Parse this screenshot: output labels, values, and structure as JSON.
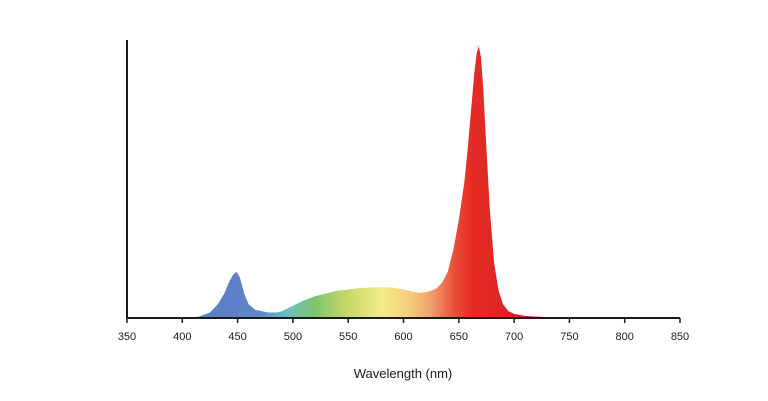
{
  "chart_data": {
    "type": "area",
    "title": "",
    "xlabel": "Wavelength (nm)",
    "ylabel": "",
    "xlim": [
      350,
      850
    ],
    "ylim": [
      0,
      1
    ],
    "x_ticks": [
      350,
      400,
      450,
      500,
      550,
      600,
      650,
      700,
      750,
      800,
      850
    ],
    "grid": false,
    "legend": "none",
    "fill": "visible-spectrum gradient",
    "series": [
      {
        "x": [
          400,
          415,
          425,
          432,
          438,
          442,
          446,
          449,
          452,
          456,
          460,
          466,
          472,
          478,
          485,
          490,
          495,
          500,
          510,
          520,
          530,
          540,
          550,
          560,
          570,
          580,
          590,
          600,
          605,
          610,
          615,
          620,
          625,
          630,
          635,
          640,
          645,
          650,
          655,
          658,
          661,
          664,
          666,
          668,
          670,
          672,
          675,
          678,
          682,
          686,
          690,
          695,
          700,
          710,
          720,
          730,
          740,
          750
        ],
        "values": [
          0,
          0.005,
          0.02,
          0.05,
          0.09,
          0.13,
          0.16,
          0.17,
          0.15,
          0.09,
          0.05,
          0.03,
          0.025,
          0.02,
          0.02,
          0.025,
          0.035,
          0.045,
          0.065,
          0.08,
          0.09,
          0.1,
          0.105,
          0.11,
          0.112,
          0.113,
          0.112,
          0.105,
          0.1,
          0.095,
          0.093,
          0.095,
          0.1,
          0.11,
          0.13,
          0.17,
          0.25,
          0.36,
          0.5,
          0.62,
          0.76,
          0.9,
          0.97,
          1.0,
          0.96,
          0.85,
          0.62,
          0.4,
          0.2,
          0.1,
          0.05,
          0.025,
          0.015,
          0.008,
          0.005,
          0.003,
          0.001,
          0
        ]
      }
    ]
  }
}
